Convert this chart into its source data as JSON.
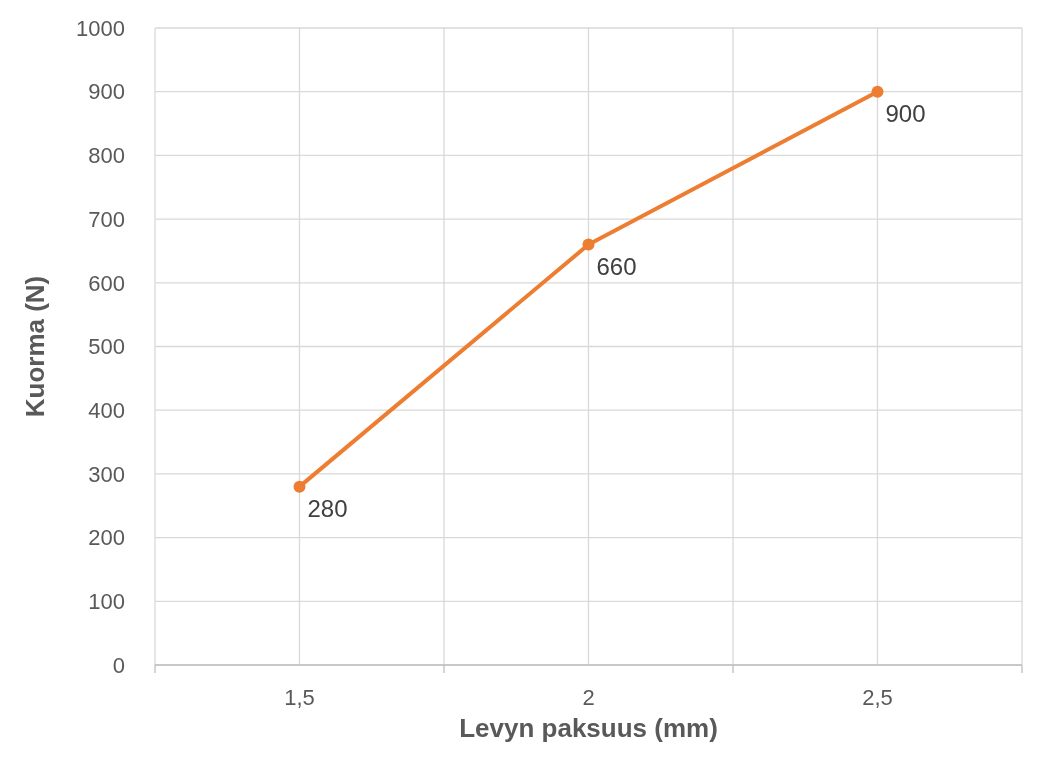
{
  "chart_data": {
    "type": "line",
    "xlabel": "Levyn paksuus (mm)",
    "ylabel": "Kuorma (N)",
    "categories": [
      "1,5",
      "2",
      "2,5"
    ],
    "series": [
      {
        "color": "#ed7d31",
        "values": [
          280,
          660,
          900
        ]
      }
    ],
    "ylim": [
      0,
      1000
    ],
    "yticks": [
      0,
      100,
      200,
      300,
      400,
      500,
      600,
      700,
      800,
      900,
      1000
    ],
    "grid": true,
    "marker": "circle",
    "data_labels": true,
    "line_style": "solid"
  }
}
